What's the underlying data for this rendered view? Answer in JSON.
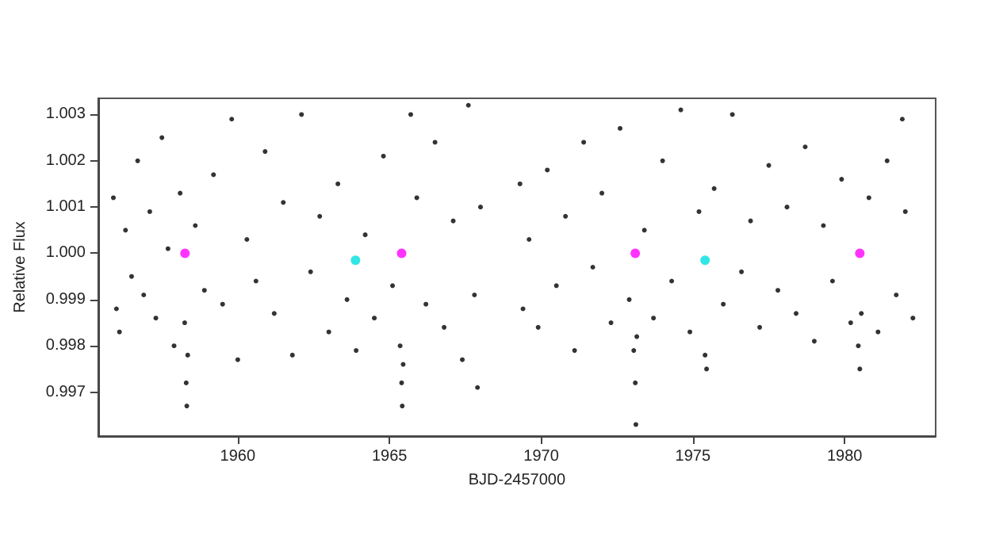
{
  "chart_data": {
    "type": "scatter",
    "xlabel": "BJD-2457000",
    "ylabel": "Relative Flux",
    "xlim": [
      1955.4,
      1983
    ],
    "ylim": [
      0.99605,
      1.00335
    ],
    "xticks": [
      1960,
      1965,
      1970,
      1975,
      1980
    ],
    "yticks": [
      0.997,
      0.998,
      0.999,
      {
        "value": 1,
        "label": "1.000"
      },
      1.001,
      1.002,
      1.003
    ],
    "grid": false,
    "marker": "circle",
    "series": [
      {
        "color": "#000000",
        "x": [
          1955.9,
          1956.0,
          1956.1,
          1956.3,
          1956.5,
          1956.7,
          1956.9,
          1957.1,
          1957.3,
          1957.5,
          1957.7,
          1957.9,
          1958.1,
          1958.25,
          1958.3,
          1958.32,
          1958.35,
          1958.6,
          1958.9,
          1959.2,
          1959.5,
          1959.8,
          1960.0,
          1960.3,
          1960.6,
          1960.9,
          1961.2,
          1961.5,
          1961.8,
          1962.1,
          1962.4,
          1962.7,
          1963.0,
          1963.3,
          1963.6,
          1963.9,
          1964.2,
          1964.5,
          1964.8,
          1965.1,
          1965.35,
          1965.4,
          1965.42,
          1965.45,
          1965.7,
          1965.9,
          1966.2,
          1966.5,
          1966.8,
          1967.1,
          1967.4,
          1967.6,
          1967.8,
          1968.0,
          1967.9,
          1969.3,
          1969.4,
          1969.6,
          1969.9,
          1970.2,
          1970.5,
          1970.8,
          1971.1,
          1971.4,
          1971.7,
          1972.0,
          1972.3,
          1972.6,
          1972.9,
          1973.05,
          1973.1,
          1973.12,
          1973.15,
          1973.4,
          1973.7,
          1974.0,
          1974.3,
          1974.6,
          1974.9,
          1975.2,
          1975.4,
          1975.45,
          1975.7,
          1976.0,
          1976.3,
          1976.6,
          1976.9,
          1977.2,
          1977.5,
          1977.8,
          1978.1,
          1978.4,
          1978.7,
          1979.0,
          1979.3,
          1979.6,
          1979.9,
          1980.2,
          1980.45,
          1980.5,
          1980.55,
          1980.8,
          1981.1,
          1981.4,
          1981.7,
          1982.0,
          1982.25,
          1981.9
        ],
        "values": [
          1.0012,
          0.9988,
          0.9983,
          1.0005,
          0.9995,
          1.002,
          0.9991,
          1.0009,
          0.9986,
          1.0025,
          1.0001,
          0.998,
          1.0013,
          0.9985,
          0.9972,
          0.9967,
          0.9978,
          1.0006,
          0.9992,
          1.0017,
          0.9989,
          1.0029,
          0.9977,
          1.0003,
          0.9994,
          1.0022,
          0.9987,
          1.0011,
          0.9978,
          1.003,
          0.9996,
          1.0008,
          0.9983,
          1.0015,
          0.999,
          0.9979,
          1.0004,
          0.9986,
          1.0021,
          0.9993,
          0.998,
          0.9972,
          0.9967,
          0.9976,
          1.003,
          1.0012,
          0.9989,
          1.0024,
          0.9984,
          1.0007,
          0.9977,
          1.0032,
          0.9991,
          1.001,
          0.9971,
          1.0015,
          0.9988,
          1.0003,
          0.9984,
          1.0018,
          0.9993,
          1.0008,
          0.9979,
          1.0024,
          0.9997,
          1.0013,
          0.9985,
          1.0027,
          0.999,
          0.9979,
          0.9972,
          0.9963,
          0.9982,
          1.0005,
          0.9986,
          1.002,
          0.9994,
          1.0031,
          0.9983,
          1.0009,
          0.9978,
          0.9975,
          1.0014,
          0.9989,
          1.003,
          0.9996,
          1.0007,
          0.9984,
          1.0019,
          0.9992,
          1.001,
          0.9987,
          1.0023,
          0.9981,
          1.0006,
          0.9994,
          1.0016,
          0.9985,
          0.998,
          0.9975,
          0.9987,
          1.0012,
          0.9983,
          1.002,
          0.9991,
          1.0009,
          0.9986,
          1.0029
        ]
      },
      {
        "color": "#ff00ff",
        "x": [
          1958.26,
          1965.4,
          1973.1,
          1980.5
        ],
        "values": [
          1.0,
          1.0,
          1.0,
          1.0
        ]
      },
      {
        "color": "#00e0e0",
        "x": [
          1963.88,
          1975.4
        ],
        "values": [
          0.99985,
          0.99985
        ]
      }
    ]
  }
}
